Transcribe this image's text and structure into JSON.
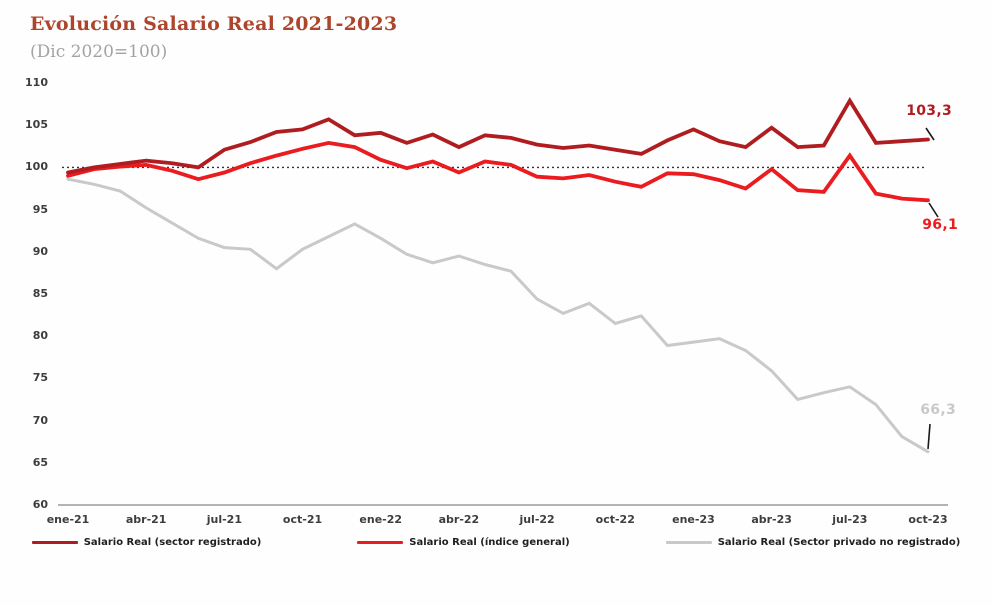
{
  "title": "Evolución Salario Real 2021-2023",
  "subtitle": "(Dic 2020=100)",
  "colors": {
    "title": "#ad452c",
    "subtitle": "#a3a3a3",
    "axis_text": "#3d3d3d",
    "axis_line": "#9a9a9a",
    "reference_line": "#333333",
    "pointer_line": "#1a1a1a"
  },
  "chart_data": {
    "type": "line",
    "title": "Evolución Salario Real 2021-2023",
    "subtitle": "(Dic 2020=100)",
    "ylim": [
      60,
      110
    ],
    "y_ticks": [
      110,
      105,
      100,
      95,
      90,
      85,
      80,
      75,
      70,
      65,
      60
    ],
    "reference_line": 100,
    "grid": false,
    "legend_position": "bottom",
    "x_tick_every": 3,
    "months": [
      "ene-21",
      "feb-21",
      "mar-21",
      "abr-21",
      "may-21",
      "jun-21",
      "jul-21",
      "ago-21",
      "sep-21",
      "oct-21",
      "nov-21",
      "dic-21",
      "ene-22",
      "feb-22",
      "mar-22",
      "abr-22",
      "may-22",
      "jun-22",
      "jul-22",
      "ago-22",
      "sep-22",
      "oct-22",
      "nov-22",
      "dic-22",
      "ene-23",
      "feb-23",
      "mar-23",
      "abr-23",
      "may-23",
      "jun-23",
      "jul-23",
      "ago-23",
      "sep-23",
      "oct-23"
    ],
    "series": [
      {
        "name": "Salario Real (sector registrado)",
        "color": "#b01d20",
        "end_label": "103,3",
        "values": [
          99.4,
          100.0,
          100.4,
          100.8,
          100.5,
          100.0,
          102.1,
          103.0,
          104.2,
          104.5,
          105.7,
          103.8,
          104.1,
          102.9,
          103.9,
          102.4,
          103.8,
          103.5,
          102.7,
          102.3,
          102.6,
          102.1,
          101.6,
          103.2,
          104.5,
          103.1,
          102.4,
          104.7,
          102.4,
          102.6,
          107.9,
          102.9,
          103.1,
          103.3
        ]
      },
      {
        "name": "Salario Real (índice general)",
        "color": "#ea1c1f",
        "end_label": "96,1",
        "values": [
          99.0,
          99.8,
          100.1,
          100.3,
          99.6,
          98.6,
          99.4,
          100.5,
          101.4,
          102.2,
          102.9,
          102.4,
          100.9,
          99.9,
          100.7,
          99.4,
          100.7,
          100.3,
          98.9,
          98.7,
          99.1,
          98.3,
          97.7,
          99.3,
          99.2,
          98.5,
          97.5,
          99.8,
          97.3,
          97.1,
          101.4,
          96.9,
          96.3,
          96.1
        ]
      },
      {
        "name": "Salario Real (Sector privado no registrado)",
        "color": "#c9c9c9",
        "end_label": "66,3",
        "values": [
          98.6,
          98.0,
          97.2,
          95.2,
          93.4,
          91.6,
          90.5,
          90.3,
          88.0,
          90.3,
          91.8,
          93.3,
          91.6,
          89.7,
          88.7,
          89.5,
          88.5,
          87.7,
          84.4,
          82.7,
          83.9,
          81.5,
          82.4,
          78.9,
          79.3,
          79.7,
          78.3,
          75.9,
          72.5,
          73.3,
          74.0,
          71.9,
          68.1,
          66.3
        ]
      }
    ]
  }
}
